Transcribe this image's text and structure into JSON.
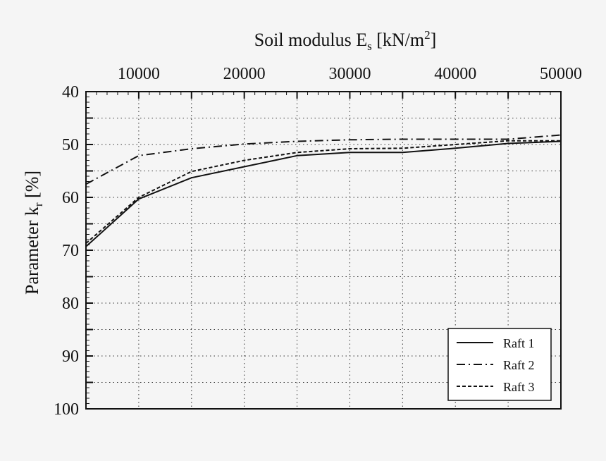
{
  "chart_data": {
    "type": "line",
    "xlabel": "Soil modulus E",
    "xlabel_sub": "s",
    "xlabel_unit_pre": " [kN/m",
    "xlabel_unit_sup": "2",
    "xlabel_unit_post": "]",
    "ylabel": "Parameter k",
    "ylabel_sub": "r",
    "ylabel_unit": " [%]",
    "x_axis_position": "top",
    "y_axis_inverted": true,
    "xlim": [
      5000,
      50000
    ],
    "ylim": [
      40,
      100
    ],
    "x_ticks": [
      10000,
      20000,
      30000,
      40000,
      50000
    ],
    "x_tick_labels": [
      "10000",
      "20000",
      "30000",
      "40000",
      "50000"
    ],
    "x_grid": [
      10000,
      15000,
      20000,
      25000,
      30000,
      35000,
      40000,
      45000
    ],
    "y_ticks": [
      40,
      50,
      60,
      70,
      80,
      90,
      100
    ],
    "y_tick_labels": [
      "40",
      "50",
      "60",
      "70",
      "80",
      "90",
      "100"
    ],
    "y_grid": [
      45,
      50,
      55,
      60,
      65,
      70,
      75,
      80,
      85,
      90,
      95
    ],
    "grid": true,
    "legend_position": "bottom-right",
    "series": [
      {
        "name": "Raft 1",
        "dash": "solid",
        "x": [
          5000,
          10000,
          15000,
          20000,
          25000,
          30000,
          35000,
          40000,
          45000,
          50000
        ],
        "y": [
          69.3,
          60.3,
          56.3,
          54.2,
          52.1,
          51.5,
          51.5,
          50.7,
          49.8,
          49.4
        ]
      },
      {
        "name": "Raft 2",
        "dash": "dashdot",
        "x": [
          5000,
          10000,
          15000,
          20000,
          25000,
          30000,
          35000,
          40000,
          45000,
          50000
        ],
        "y": [
          57.5,
          52.1,
          50.8,
          49.9,
          49.4,
          49.1,
          49.0,
          49.0,
          49.0,
          48.2
        ]
      },
      {
        "name": "Raft 3",
        "dash": "dashed",
        "x": [
          5000,
          10000,
          15000,
          20000,
          25000,
          30000,
          35000,
          40000,
          45000,
          50000
        ],
        "y": [
          68.7,
          60.0,
          55.1,
          53.0,
          51.5,
          50.8,
          50.7,
          50.0,
          49.3,
          49.3
        ]
      }
    ]
  }
}
